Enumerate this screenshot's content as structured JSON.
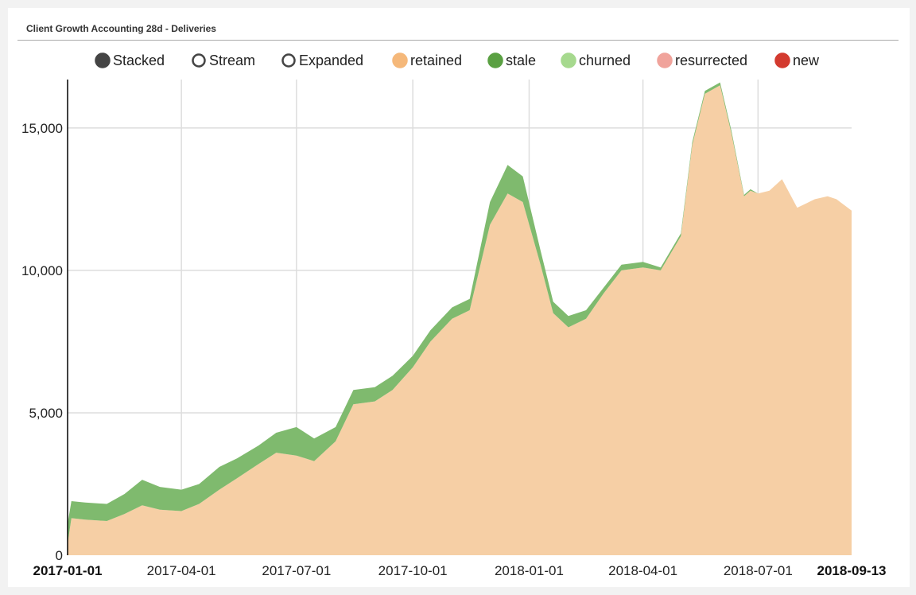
{
  "panel": {
    "title": "Client Growth Accounting 28d - Deliveries"
  },
  "controls": [
    {
      "label": "Stacked",
      "selected": true,
      "color": "#444444"
    },
    {
      "label": "Stream",
      "selected": false,
      "color": "#444444"
    },
    {
      "label": "Expanded",
      "selected": false,
      "color": "#444444"
    }
  ],
  "chart_data": {
    "type": "area",
    "stacked": true,
    "ylim": [
      0,
      16700
    ],
    "xlim": [
      "2017-01-01",
      "2018-09-13"
    ],
    "y_ticks": [
      "0",
      "5,000",
      "10,000",
      "15,000"
    ],
    "y_tick_values": [
      0,
      5000,
      10000,
      15000
    ],
    "x_ticks": [
      "2017-01-01",
      "2017-04-01",
      "2017-07-01",
      "2017-10-01",
      "2018-01-01",
      "2018-04-01",
      "2018-07-01",
      "2018-09-13"
    ],
    "x_tick_dates": [
      "2017-01-01",
      "2017-04-01",
      "2017-07-01",
      "2017-10-01",
      "2018-01-01",
      "2018-04-01",
      "2018-07-01",
      "2018-09-13"
    ],
    "x_tick_bold": [
      true,
      false,
      false,
      false,
      false,
      false,
      false,
      true
    ],
    "grid": true,
    "legend_position": "top",
    "legend": [
      {
        "name": "retained",
        "color": "#f5b87a"
      },
      {
        "name": "stale",
        "color": "#5aa042"
      },
      {
        "name": "churned",
        "color": "#a6d98e"
      },
      {
        "name": "resurrected",
        "color": "#f0a39b"
      },
      {
        "name": "new",
        "color": "#d33a2f"
      }
    ],
    "dates": [
      "2017-01-01",
      "2017-01-04",
      "2017-01-15",
      "2017-02-01",
      "2017-02-15",
      "2017-03-01",
      "2017-03-15",
      "2017-04-01",
      "2017-04-15",
      "2017-05-01",
      "2017-05-15",
      "2017-06-01",
      "2017-06-15",
      "2017-07-01",
      "2017-07-15",
      "2017-08-01",
      "2017-08-15",
      "2017-09-01",
      "2017-09-15",
      "2017-10-01",
      "2017-10-15",
      "2017-11-01",
      "2017-11-15",
      "2017-12-01",
      "2017-12-15",
      "2017-12-27",
      "2018-01-10",
      "2018-01-20",
      "2018-02-01",
      "2018-02-15",
      "2018-03-01",
      "2018-03-15",
      "2018-04-01",
      "2018-04-15",
      "2018-05-01",
      "2018-05-10",
      "2018-05-20",
      "2018-06-01",
      "2018-06-10",
      "2018-06-20",
      "2018-06-25",
      "2018-07-01",
      "2018-07-10",
      "2018-07-20",
      "2018-08-01",
      "2018-08-15",
      "2018-08-25",
      "2018-09-01",
      "2018-09-13"
    ],
    "series": [
      {
        "name": "retained",
        "values": [
          400,
          1300,
          1250,
          1200,
          1450,
          1750,
          1600,
          1550,
          1800,
          2300,
          2700,
          3200,
          3600,
          3500,
          3300,
          4000,
          5300,
          5400,
          5800,
          6600,
          7500,
          8300,
          8600,
          11600,
          12700,
          12400,
          10200,
          8500,
          8000,
          8300,
          9200,
          10000,
          10100,
          10000,
          11200,
          14400,
          16200,
          16500,
          14800,
          12600,
          12800,
          12700,
          12800,
          13200,
          12200,
          12500,
          12600,
          12500,
          12100
        ]
      },
      {
        "name": "stale",
        "values": [
          700,
          600,
          600,
          600,
          700,
          900,
          800,
          750,
          700,
          800,
          700,
          650,
          700,
          1000,
          800,
          500,
          500,
          500,
          500,
          400,
          400,
          400,
          400,
          800,
          1000,
          900,
          500,
          400,
          400,
          300,
          200,
          200,
          200,
          100,
          100,
          100,
          100,
          100,
          100,
          50,
          50,
          0,
          0,
          0,
          0,
          0,
          0,
          0,
          0
        ]
      },
      {
        "name": "churned",
        "values": [
          0,
          0,
          0,
          0,
          0,
          0,
          0,
          0,
          0,
          0,
          0,
          0,
          0,
          0,
          0,
          0,
          0,
          0,
          0,
          0,
          0,
          0,
          0,
          0,
          0,
          0,
          0,
          0,
          0,
          0,
          0,
          0,
          0,
          0,
          0,
          0,
          0,
          0,
          0,
          0,
          0,
          0,
          0,
          0,
          0,
          0,
          0,
          0,
          0
        ]
      },
      {
        "name": "resurrected",
        "values": [
          0,
          0,
          0,
          0,
          0,
          0,
          0,
          0,
          0,
          0,
          0,
          0,
          0,
          0,
          0,
          0,
          0,
          0,
          0,
          0,
          0,
          0,
          0,
          0,
          0,
          0,
          0,
          0,
          0,
          0,
          0,
          0,
          0,
          0,
          0,
          0,
          0,
          0,
          0,
          0,
          0,
          0,
          0,
          0,
          0,
          0,
          0,
          0,
          0
        ]
      },
      {
        "name": "new",
        "values": [
          0,
          0,
          0,
          0,
          0,
          0,
          0,
          0,
          0,
          0,
          0,
          0,
          0,
          0,
          0,
          0,
          0,
          0,
          0,
          0,
          0,
          0,
          0,
          0,
          0,
          0,
          0,
          0,
          0,
          0,
          0,
          0,
          0,
          0,
          0,
          0,
          0,
          0,
          0,
          0,
          0,
          0,
          0,
          0,
          0,
          0,
          0,
          0,
          0
        ]
      }
    ],
    "series_colors": {
      "retained": "#f6cfa5",
      "stale": "#7fba6e",
      "churned": "#a6d98e",
      "resurrected": "#f0a39b",
      "new": "#d33a2f"
    }
  }
}
